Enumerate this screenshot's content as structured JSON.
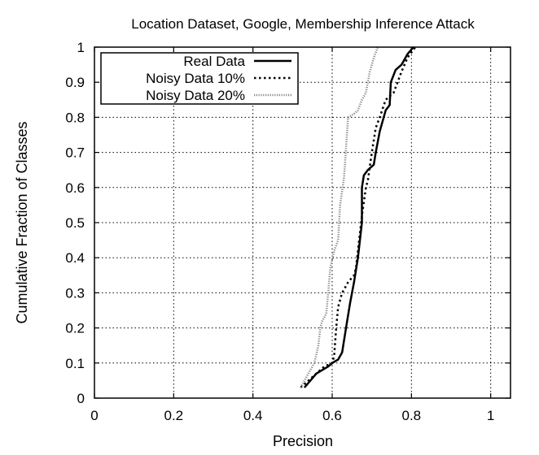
{
  "chart_data": {
    "type": "line",
    "title": "Location Dataset, Google, Membership Inference Attack",
    "xlabel": "Precision",
    "ylabel": "Cumulative Fraction of Classes",
    "xlim": [
      0,
      1.05
    ],
    "ylim": [
      0,
      1
    ],
    "xticks": [
      0,
      0.2,
      0.4,
      0.6,
      0.8,
      1
    ],
    "xtick_labels": [
      "0",
      "0.2",
      "0.4",
      "0.6",
      "0.8",
      "1"
    ],
    "yticks": [
      0,
      0.1,
      0.2,
      0.3,
      0.4,
      0.5,
      0.6,
      0.7,
      0.8,
      0.9,
      1
    ],
    "ytick_labels": [
      "0",
      "0.1",
      "0.2",
      "0.3",
      "0.4",
      "0.5",
      "0.6",
      "0.7",
      "0.8",
      "0.9",
      "1"
    ],
    "grid": true,
    "legend_position": "top-left",
    "series": [
      {
        "name": "Real Data",
        "style": "solid",
        "color": "#000000",
        "x": [
          0.53,
          0.545,
          0.56,
          0.59,
          0.6,
          0.615,
          0.625,
          0.635,
          0.645,
          0.655,
          0.665,
          0.675,
          0.675,
          0.68,
          0.69,
          0.705,
          0.71,
          0.72,
          0.735,
          0.745,
          0.748,
          0.76,
          0.775,
          0.79,
          0.805
        ],
        "y": [
          0.03,
          0.05,
          0.07,
          0.09,
          0.1,
          0.11,
          0.13,
          0.2,
          0.27,
          0.33,
          0.4,
          0.5,
          0.6,
          0.635,
          0.65,
          0.665,
          0.7,
          0.76,
          0.82,
          0.835,
          0.9,
          0.935,
          0.95,
          0.98,
          1.0
        ]
      },
      {
        "name": "Noisy Data 10%",
        "style": "dotted",
        "color": "#000000",
        "x": [
          0.52,
          0.54,
          0.56,
          0.58,
          0.6,
          0.605,
          0.61,
          0.615,
          0.625,
          0.64,
          0.655,
          0.66,
          0.668,
          0.675,
          0.685,
          0.69,
          0.695,
          0.7,
          0.71,
          0.72,
          0.735,
          0.755,
          0.765,
          0.775,
          0.79,
          0.81
        ],
        "y": [
          0.03,
          0.05,
          0.07,
          0.09,
          0.1,
          0.12,
          0.2,
          0.26,
          0.3,
          0.33,
          0.35,
          0.37,
          0.45,
          0.52,
          0.6,
          0.62,
          0.66,
          0.7,
          0.77,
          0.8,
          0.85,
          0.87,
          0.9,
          0.93,
          0.97,
          1.0
        ]
      },
      {
        "name": "Noisy Data 20%",
        "style": "densely-dotted",
        "color": "#888888",
        "x": [
          0.52,
          0.54,
          0.555,
          0.565,
          0.57,
          0.575,
          0.585,
          0.59,
          0.595,
          0.605,
          0.615,
          0.62,
          0.63,
          0.64,
          0.655,
          0.665,
          0.675,
          0.685,
          0.695,
          0.705,
          0.715
        ],
        "y": [
          0.03,
          0.07,
          0.1,
          0.15,
          0.2,
          0.22,
          0.24,
          0.3,
          0.37,
          0.42,
          0.45,
          0.55,
          0.63,
          0.8,
          0.81,
          0.82,
          0.85,
          0.87,
          0.93,
          0.97,
          1.0
        ]
      }
    ]
  }
}
